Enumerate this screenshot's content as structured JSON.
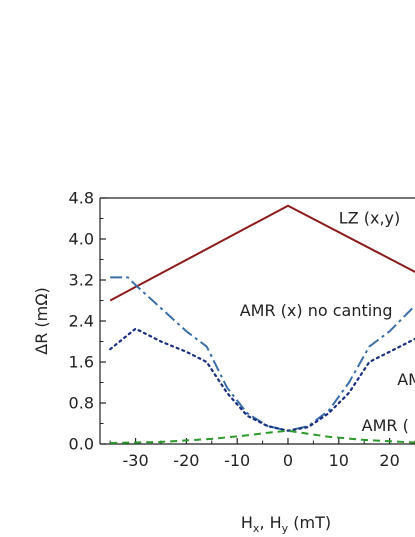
{
  "chart_data": {
    "type": "line",
    "xlabel": "H",
    "xlabel_sub1": "x",
    "xlabel_mid": ", H",
    "xlabel_sub2": "y",
    "xlabel_unit": " (mT)",
    "ylabel": "ΔR (mΩ)",
    "xlim": [
      -37,
      25
    ],
    "ylim": [
      0,
      4.8
    ],
    "xticks": [
      -30,
      -20,
      -10,
      0,
      10,
      20
    ],
    "xtick_labels": [
      "-30",
      "-20",
      "-10",
      "0",
      "10",
      "20"
    ],
    "yticks": [
      0,
      0.8,
      1.6,
      2.4,
      3.2,
      4.0,
      4.8
    ],
    "ytick_labels": [
      "0.0",
      "0.8",
      "1.6",
      "2.4",
      "3.2",
      "4.0",
      "4.8"
    ],
    "series": [
      {
        "color": "#8b1a1a",
        "style": "solid",
        "x": [
          -35,
          0,
          30
        ],
        "y": [
          2.8,
          4.65,
          3.1
        ]
      },
      {
        "color": "#3a6fa8",
        "style": "dashdot",
        "x": [
          -35,
          -31.5,
          -30,
          -25,
          -20,
          -16,
          -12,
          -8,
          -4,
          0,
          4,
          8,
          12,
          16,
          20,
          25
        ],
        "y": [
          3.25,
          3.25,
          3.1,
          2.65,
          2.2,
          1.9,
          1.1,
          0.6,
          0.35,
          0.26,
          0.35,
          0.65,
          1.2,
          1.9,
          2.2,
          2.7
        ]
      },
      {
        "color": "#1a2f80",
        "style": "dotted",
        "x": [
          -35,
          -30,
          -25,
          -20,
          -16,
          -12,
          -8,
          -4,
          0,
          4,
          8,
          12,
          16,
          20,
          25
        ],
        "y": [
          1.85,
          2.25,
          2.0,
          1.8,
          1.6,
          1.0,
          0.55,
          0.35,
          0.26,
          0.33,
          0.6,
          1.0,
          1.6,
          1.8,
          2.05
        ]
      },
      {
        "color": "#2a9a2a",
        "style": "dashed",
        "x": [
          -35,
          -25,
          -15,
          -8,
          -4,
          0,
          4,
          8,
          15,
          25
        ],
        "y": [
          0.02,
          0.04,
          0.1,
          0.17,
          0.22,
          0.26,
          0.2,
          0.14,
          0.08,
          0.03
        ]
      }
    ],
    "annotations": [
      {
        "text": "LZ (x,y)",
        "x": 10,
        "y": 4.3
      },
      {
        "text": "AMR (x) no canting",
        "x": -9.5,
        "y": 2.5
      },
      {
        "text": "AM",
        "x": 21.5,
        "y": 1.15
      },
      {
        "text": "AMR (",
        "x": 14.5,
        "y": 0.25
      }
    ]
  }
}
